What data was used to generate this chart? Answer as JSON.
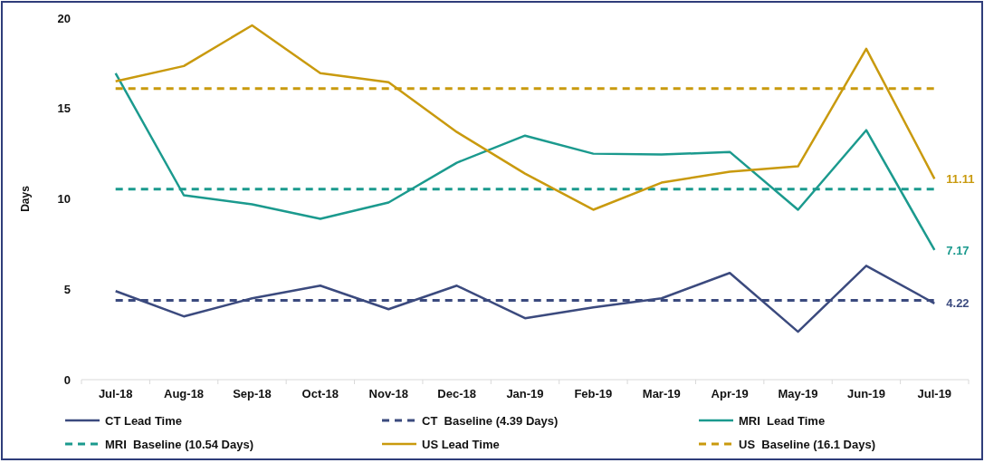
{
  "chart_data": {
    "type": "line",
    "ylabel": "Days",
    "categories": [
      "Jul-18",
      "Aug-18",
      "Sep-18",
      "Oct-18",
      "Nov-18",
      "Dec-18",
      "Jan-19",
      "Feb-19",
      "Mar-19",
      "Apr-19",
      "May-19",
      "Jun-19",
      "Jul-19"
    ],
    "series": [
      {
        "name": "CT Lead Time",
        "color": "#3b4a7e",
        "line_style": "solid",
        "values": [
          4.9,
          3.5,
          4.5,
          5.2,
          3.9,
          5.2,
          3.4,
          4.0,
          4.5,
          5.9,
          2.65,
          6.3,
          4.22
        ],
        "value_labels": [
          null,
          null,
          null,
          null,
          null,
          null,
          null,
          null,
          null,
          null,
          null,
          null,
          "4.22"
        ]
      },
      {
        "name": "CT  Baseline (4.39 Days)",
        "color": "#3b4a7e",
        "line_style": "dashed",
        "values": [
          4.39,
          4.39,
          4.39,
          4.39,
          4.39,
          4.39,
          4.39,
          4.39,
          4.39,
          4.39,
          4.39,
          4.39,
          4.39
        ]
      },
      {
        "name": "MRI  Lead Time",
        "color": "#1b9a8e",
        "line_style": "solid",
        "values": [
          16.95,
          10.2,
          9.7,
          8.9,
          9.8,
          12.0,
          13.5,
          12.5,
          12.45,
          12.6,
          9.4,
          13.8,
          7.17
        ],
        "value_labels": [
          null,
          null,
          null,
          null,
          null,
          null,
          null,
          null,
          null,
          null,
          null,
          null,
          "7.17"
        ]
      },
      {
        "name": "MRI  Baseline (10.54 Days)",
        "color": "#1b9a8e",
        "line_style": "dashed",
        "values": [
          10.54,
          10.54,
          10.54,
          10.54,
          10.54,
          10.54,
          10.54,
          10.54,
          10.54,
          10.54,
          10.54,
          10.54,
          10.54
        ]
      },
      {
        "name": "US Lead Time",
        "color": "#c99a0e",
        "line_style": "solid",
        "values": [
          16.5,
          17.35,
          19.6,
          16.95,
          16.45,
          13.7,
          11.4,
          9.4,
          10.9,
          11.5,
          11.8,
          18.3,
          11.11
        ],
        "value_labels": [
          null,
          null,
          null,
          null,
          null,
          null,
          null,
          null,
          null,
          null,
          null,
          null,
          "11.11"
        ]
      },
      {
        "name": "US  Baseline (16.1 Days)",
        "color": "#c99a0e",
        "line_style": "dashed",
        "values": [
          16.1,
          16.1,
          16.1,
          16.1,
          16.1,
          16.1,
          16.1,
          16.1,
          16.1,
          16.1,
          16.1,
          16.1,
          16.1
        ]
      }
    ],
    "ylim": [
      0,
      20
    ],
    "yticks": [
      0,
      5,
      10,
      15,
      20
    ],
    "grid": false,
    "legend": "bottom",
    "marker": "none"
  }
}
